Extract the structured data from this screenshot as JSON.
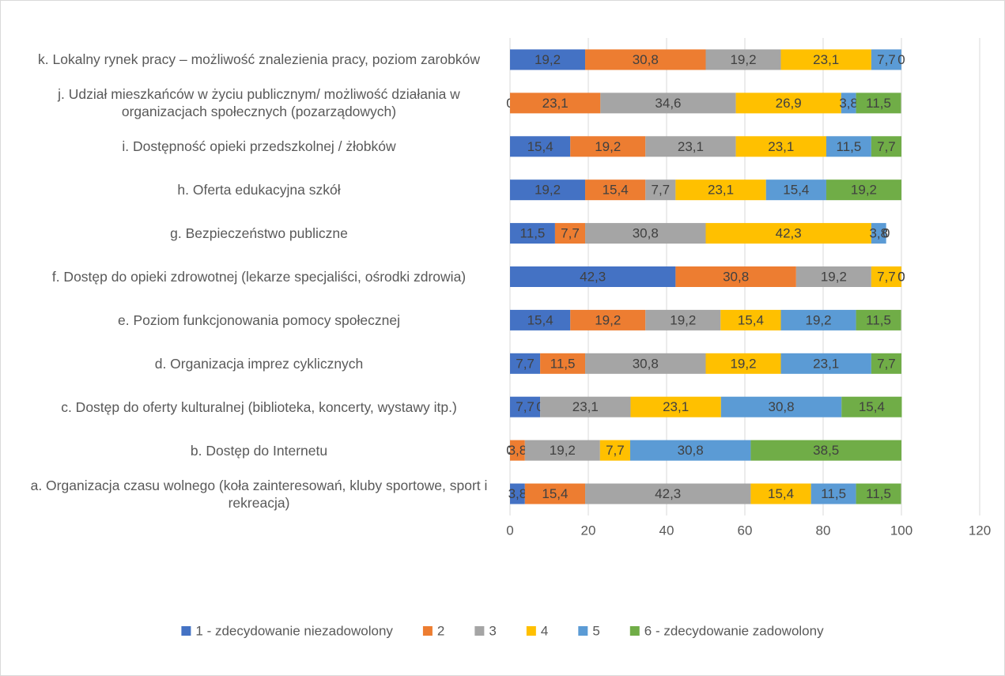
{
  "chart_data": {
    "type": "stacked-bar-horizontal",
    "categories": [
      "a. Organizacja czasu wolnego (koła zainteresowań, kluby sportowe, sport i rekreacja)",
      "b. Dostęp do Internetu",
      "c. Dostęp do oferty kulturalnej (biblioteka, koncerty, wystawy itp.)",
      "d. Organizacja imprez cyklicznych",
      "e. Poziom funkcjonowania pomocy społecznej",
      "f. Dostęp do opieki zdrowotnej (lekarze specjaliści, ośrodki zdrowia)",
      "g. Bezpieczeństwo publiczne",
      "h. Oferta edukacyjna szkół",
      "i. Dostępność opieki przedszkolnej / żłobków",
      "j. Udział mieszkańców w życiu publicznym/ możliwość działania w organizacjach społecznych (pozarządowych)",
      "k. Lokalny rynek pracy – możliwość znalezienia pracy, poziom zarobków"
    ],
    "series": [
      {
        "name": "1 - zdecydowanie niezadowolony",
        "color": "#4472c4",
        "values": [
          3.8,
          0,
          7.7,
          7.7,
          15.4,
          42.3,
          11.5,
          19.2,
          15.4,
          0,
          19.2
        ],
        "value_labels": [
          "3,8",
          "0",
          "7,7",
          "7,7",
          "15,4",
          "42,3",
          "11,5",
          "19,2",
          "15,4",
          "0",
          "19,2"
        ]
      },
      {
        "name": "2",
        "color": "#ed7d31",
        "values": [
          15.4,
          3.8,
          0,
          11.5,
          19.2,
          30.8,
          7.7,
          15.4,
          19.2,
          23.1,
          30.8
        ],
        "value_labels": [
          "15,4",
          "3,8",
          "0",
          "11,5",
          "19,2",
          "30,8",
          "7,7",
          "15,4",
          "19,2",
          "23,1",
          "30,8"
        ]
      },
      {
        "name": "3",
        "color": "#a5a5a5",
        "values": [
          42.3,
          19.2,
          23.1,
          30.8,
          19.2,
          19.2,
          30.8,
          7.7,
          23.1,
          34.6,
          19.2
        ],
        "value_labels": [
          "42,3",
          "19,2",
          "23,1",
          "30,8",
          "19,2",
          "19,2",
          "30,8",
          "7,7",
          "23,1",
          "34,6",
          "19,2"
        ]
      },
      {
        "name": "4",
        "color": "#ffc000",
        "values": [
          15.4,
          7.7,
          23.1,
          19.2,
          15.4,
          7.7,
          42.3,
          23.1,
          23.1,
          26.9,
          23.1
        ],
        "value_labels": [
          "15,4",
          "7,7",
          "23,1",
          "19,2",
          "15,4",
          "7,7",
          "42,3",
          "23,1",
          "23,1",
          "26,9",
          "23,1"
        ]
      },
      {
        "name": "5",
        "color": "#5b9bd5",
        "values": [
          11.5,
          30.8,
          30.8,
          23.1,
          19.2,
          0,
          3.8,
          15.4,
          11.5,
          3.8,
          7.7
        ],
        "value_labels": [
          "11,5",
          "30,8",
          "30,8",
          "23,1",
          "19,2",
          "0",
          "3,8",
          "15,4",
          "11,5",
          "3,8",
          "7,7"
        ]
      },
      {
        "name": "6 - zdecydowanie zadowolony",
        "color": "#70ad47",
        "values": [
          11.5,
          38.5,
          15.4,
          7.7,
          11.5,
          0,
          0,
          19.2,
          7.7,
          11.5,
          0
        ],
        "value_labels": [
          "11,5",
          "38,5",
          "15,4",
          "7,7",
          "11,5",
          "0",
          "0",
          "19,2",
          "7,7",
          "11,5",
          "0"
        ]
      }
    ],
    "xlim": [
      0,
      120
    ],
    "xticks": [
      0,
      20,
      40,
      60,
      80,
      100,
      120
    ],
    "grid": true,
    "legend": "bottom"
  }
}
